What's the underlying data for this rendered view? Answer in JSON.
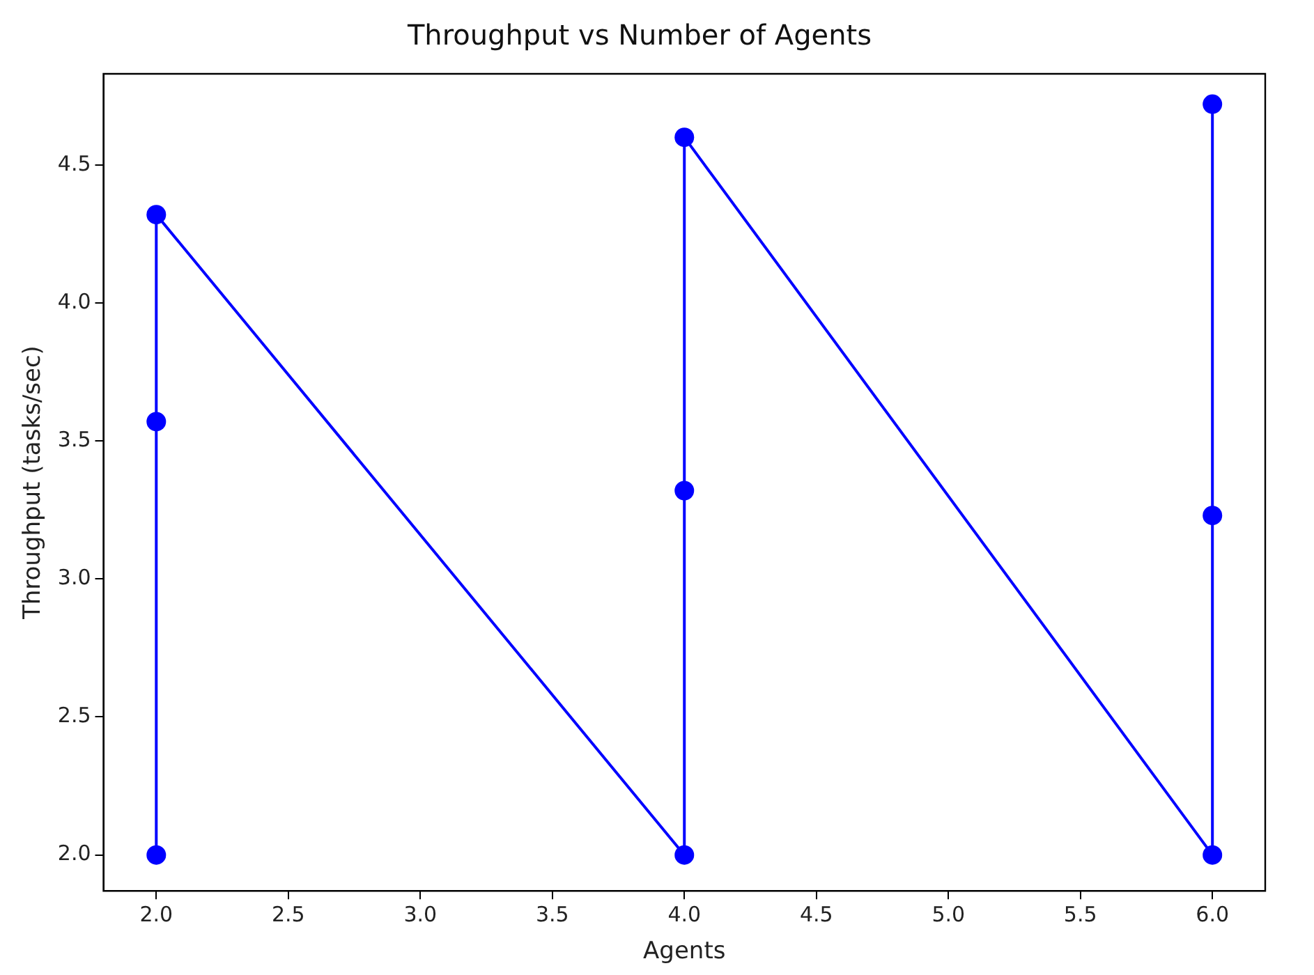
{
  "chart_data": {
    "type": "line",
    "title": "Throughput vs Number of Agents",
    "xlabel": "Agents",
    "ylabel": "Throughput (tasks/sec)",
    "x": [
      2,
      2,
      2,
      4,
      4,
      4,
      6,
      6,
      6
    ],
    "series": [
      {
        "color": "#0000ff",
        "values": [
          2.0,
          3.57,
          4.32,
          2.0,
          3.32,
          4.6,
          2.0,
          3.23,
          4.72
        ]
      }
    ],
    "xlim": [
      1.8,
      6.2
    ],
    "xticks": [
      {
        "value": 2,
        "label": "2.0"
      },
      {
        "value": 2.5,
        "label": "2.5"
      },
      {
        "value": 3,
        "label": "3.0"
      },
      {
        "value": 3.5,
        "label": "3.5"
      },
      {
        "value": 4,
        "label": "4.0"
      },
      {
        "value": 4.5,
        "label": "4.5"
      },
      {
        "value": 5,
        "label": "5.0"
      },
      {
        "value": 5.5,
        "label": "5.5"
      },
      {
        "value": 6,
        "label": "6.0"
      }
    ],
    "ylim": [
      1.87,
      4.83
    ],
    "yticks": [
      {
        "value": 2,
        "label": "2.0"
      },
      {
        "value": 2.5,
        "label": "2.5"
      },
      {
        "value": 3,
        "label": "3.0"
      },
      {
        "value": 3.5,
        "label": "3.5"
      },
      {
        "value": 4,
        "label": "4.0"
      },
      {
        "value": 4.5,
        "label": "4.5"
      }
    ],
    "marker": "circle",
    "line_style": "solid"
  }
}
